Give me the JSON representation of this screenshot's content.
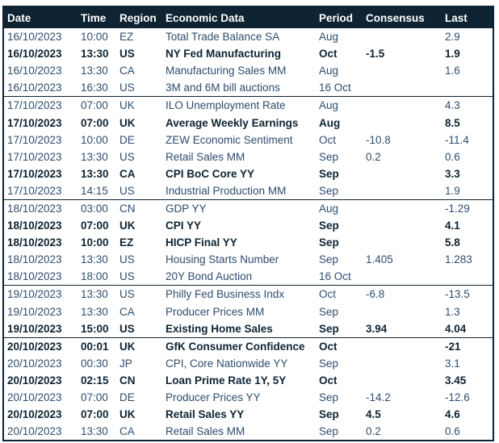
{
  "table": {
    "columns": [
      "Date",
      "Time",
      "Region",
      "Economic Data",
      "Period",
      "Consensus",
      "Last"
    ],
    "colors": {
      "header_bg": "#0e2433",
      "header_text": "#ffffff",
      "row_text": "#2e4d6e",
      "bold_row_text": "#0e2433",
      "border": "#0e2433"
    },
    "rows": [
      {
        "date": "16/10/2023",
        "time": "10:00",
        "region": "EZ",
        "event": "Total Trade Balance SA",
        "period": "Aug",
        "consensus": "",
        "last": "2.9",
        "bold": false,
        "group_start": false
      },
      {
        "date": "16/10/2023",
        "time": "13:30",
        "region": "US",
        "event": "NY Fed Manufacturing",
        "period": "Oct",
        "consensus": "-1.5",
        "last": "1.9",
        "bold": true,
        "group_start": false
      },
      {
        "date": "16/10/2023",
        "time": "13:30",
        "region": "CA",
        "event": "Manufacturing Sales MM",
        "period": "Aug",
        "consensus": "",
        "last": "1.6",
        "bold": false,
        "group_start": false
      },
      {
        "date": "16/10/2023",
        "time": "16:30",
        "region": "US",
        "event": "3M and 6M bill auctions",
        "period": "16 Oct",
        "consensus": "",
        "last": "",
        "bold": false,
        "group_start": false
      },
      {
        "date": "17/10/2023",
        "time": "07:00",
        "region": "UK",
        "event": "ILO Unemployment Rate",
        "period": "Aug",
        "consensus": "",
        "last": "4.3",
        "bold": false,
        "group_start": true
      },
      {
        "date": "17/10/2023",
        "time": "07:00",
        "region": "UK",
        "event": "Average Weekly Earnings",
        "period": "Aug",
        "consensus": "",
        "last": "8.5",
        "bold": true,
        "group_start": false
      },
      {
        "date": "17/10/2023",
        "time": "10:00",
        "region": "DE",
        "event": "ZEW Economic Sentiment",
        "period": "Oct",
        "consensus": "-10.8",
        "last": "-11.4",
        "bold": false,
        "group_start": false
      },
      {
        "date": "17/10/2023",
        "time": "13:30",
        "region": "US",
        "event": "Retail Sales MM",
        "period": "Sep",
        "consensus": "0.2",
        "last": "0.6",
        "bold": false,
        "group_start": false
      },
      {
        "date": "17/10/2023",
        "time": "13:30",
        "region": "CA",
        "event": "CPI BoC Core YY",
        "period": "Sep",
        "consensus": "",
        "last": "3.3",
        "bold": true,
        "group_start": false
      },
      {
        "date": "17/10/2023",
        "time": "14:15",
        "region": "US",
        "event": "Industrial Production MM",
        "period": "Sep",
        "consensus": "",
        "last": "1.9",
        "bold": false,
        "group_start": false
      },
      {
        "date": "18/10/2023",
        "time": "03:00",
        "region": "CN",
        "event": "GDP YY",
        "period": "Aug",
        "consensus": "",
        "last": "-1.29",
        "bold": false,
        "group_start": true
      },
      {
        "date": "18/10/2023",
        "time": "07:00",
        "region": "UK",
        "event": "CPI YY",
        "period": "Sep",
        "consensus": "",
        "last": "4.1",
        "bold": true,
        "group_start": false
      },
      {
        "date": "18/10/2023",
        "time": "10:00",
        "region": "EZ",
        "event": "HICP Final YY",
        "period": "Sep",
        "consensus": "",
        "last": "5.8",
        "bold": true,
        "group_start": false
      },
      {
        "date": "18/10/2023",
        "time": "13:30",
        "region": "US",
        "event": "Housing Starts Number",
        "period": "Sep",
        "consensus": "1.405",
        "last": "1.283",
        "bold": false,
        "group_start": false
      },
      {
        "date": "18/10/2023",
        "time": "18:00",
        "region": "US",
        "event": "20Y Bond Auction",
        "period": "16 Oct",
        "consensus": "",
        "last": "",
        "bold": false,
        "group_start": false
      },
      {
        "date": "19/10/2023",
        "time": "13:30",
        "region": "US",
        "event": "Philly Fed Business Indx",
        "period": "Oct",
        "consensus": "-6.8",
        "last": "-13.5",
        "bold": false,
        "group_start": true
      },
      {
        "date": "19/10/2023",
        "time": "13:30",
        "region": "CA",
        "event": "Producer Prices MM",
        "period": "Sep",
        "consensus": "",
        "last": "1.3",
        "bold": false,
        "group_start": false
      },
      {
        "date": "19/10/2023",
        "time": "15:00",
        "region": "US",
        "event": "Existing Home Sales",
        "period": "Sep",
        "consensus": "3.94",
        "last": "4.04",
        "bold": true,
        "group_start": false
      },
      {
        "date": "20/10/2023",
        "time": "00:01",
        "region": "UK",
        "event": "GfK Consumer Confidence",
        "period": "Oct",
        "consensus": "",
        "last": "-21",
        "bold": true,
        "group_start": true
      },
      {
        "date": "20/10/2023",
        "time": "00:30",
        "region": "JP",
        "event": "CPI, Core Nationwide YY",
        "period": "Sep",
        "consensus": "",
        "last": "3.1",
        "bold": false,
        "group_start": false
      },
      {
        "date": "20/10/2023",
        "time": "02:15",
        "region": "CN",
        "event": "Loan Prime Rate 1Y, 5Y",
        "period": "Oct",
        "consensus": "",
        "last": "3.45",
        "bold": true,
        "group_start": false
      },
      {
        "date": "20/10/2023",
        "time": "07:00",
        "region": "DE",
        "event": "Producer Prices YY",
        "period": "Sep",
        "consensus": "-14.2",
        "last": "-12.6",
        "bold": false,
        "group_start": false
      },
      {
        "date": "20/10/2023",
        "time": "07:00",
        "region": "UK",
        "event": "Retail Sales YY",
        "period": "Sep",
        "consensus": "4.5",
        "last": "4.6",
        "bold": true,
        "group_start": false
      },
      {
        "date": "20/10/2023",
        "time": "13:30",
        "region": "CA",
        "event": "Retail Sales MM",
        "period": "Sep",
        "consensus": "0.2",
        "last": "0.6",
        "bold": false,
        "group_start": false
      }
    ]
  }
}
